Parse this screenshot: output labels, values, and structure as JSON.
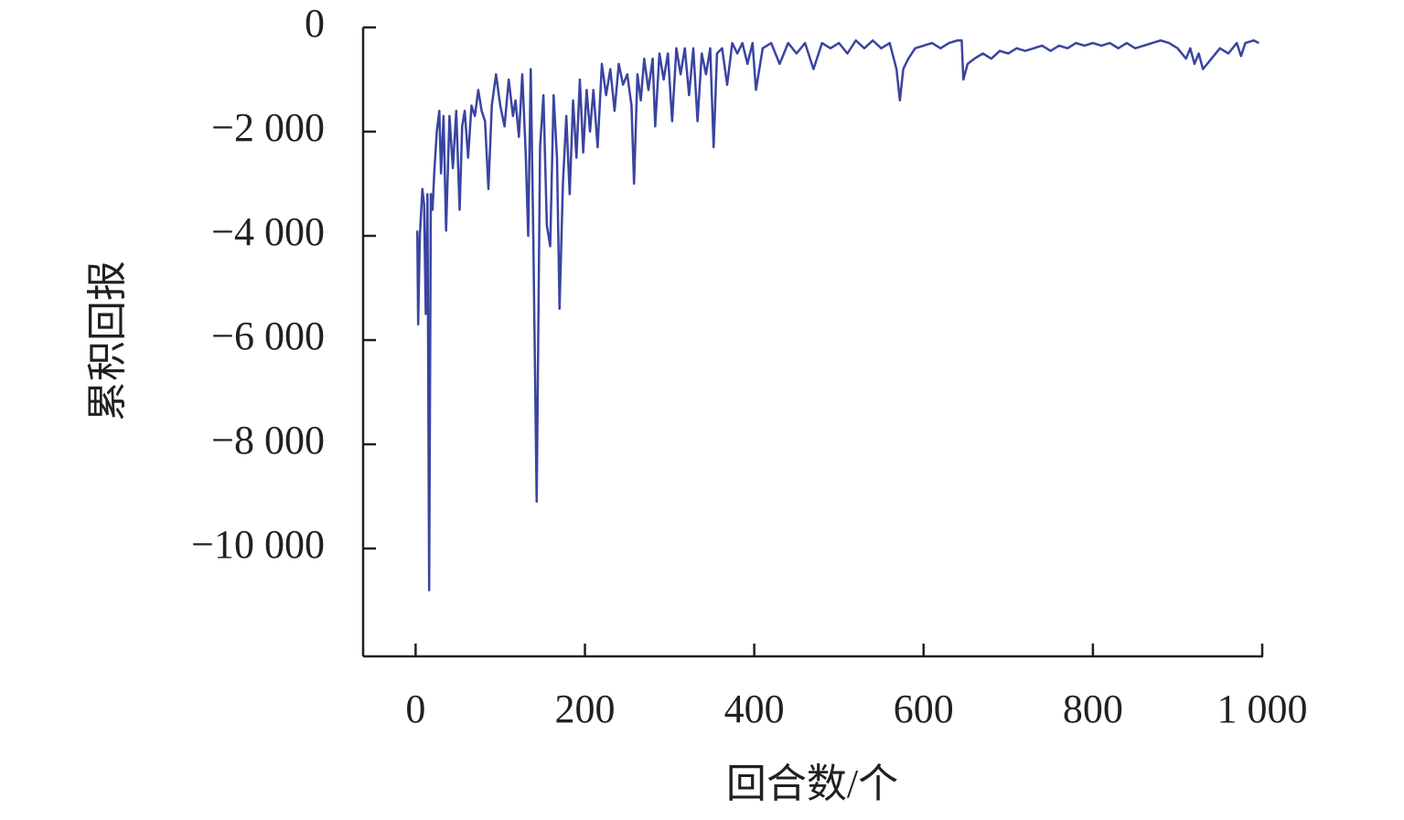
{
  "chart_data": {
    "type": "line",
    "x_label": "回合数/个",
    "y_label": "累积回报",
    "color": "#3a44a0",
    "xlim": [
      -62,
      1000
    ],
    "ylim": [
      -12070,
      0
    ],
    "xticks": [
      0,
      200,
      400,
      600,
      800,
      {
        "value": 1000,
        "label": "1 000"
      }
    ],
    "yticks": [
      0,
      {
        "value": -2000,
        "label": "−2 000"
      },
      {
        "value": -4000,
        "label": "−4 000"
      },
      {
        "value": -6000,
        "label": "−6 000"
      },
      {
        "value": -8000,
        "label": "−8 000"
      },
      {
        "value": -10000,
        "label": "−10 000"
      }
    ],
    "x": [
      2,
      3,
      5,
      8,
      10,
      12,
      14,
      16,
      18,
      20,
      22,
      25,
      28,
      30,
      33,
      36,
      40,
      44,
      48,
      52,
      55,
      58,
      62,
      66,
      70,
      74,
      78,
      82,
      86,
      90,
      95,
      100,
      105,
      110,
      115,
      118,
      122,
      126,
      130,
      133,
      136,
      139,
      143,
      147,
      151,
      155,
      159,
      163,
      167,
      170,
      174,
      178,
      182,
      186,
      190,
      194,
      198,
      202,
      206,
      210,
      215,
      220,
      225,
      230,
      235,
      240,
      245,
      250,
      255,
      258,
      262,
      266,
      270,
      275,
      280,
      283,
      288,
      293,
      298,
      303,
      308,
      313,
      318,
      323,
      328,
      333,
      338,
      343,
      348,
      352,
      356,
      362,
      368,
      374,
      380,
      386,
      392,
      398,
      402,
      410,
      420,
      430,
      440,
      450,
      460,
      470,
      480,
      490,
      500,
      510,
      520,
      530,
      540,
      550,
      560,
      568,
      572,
      576,
      582,
      590,
      600,
      610,
      620,
      630,
      640,
      645,
      647,
      652,
      660,
      670,
      680,
      690,
      700,
      710,
      720,
      730,
      740,
      750,
      760,
      770,
      780,
      790,
      800,
      810,
      820,
      830,
      840,
      850,
      860,
      870,
      880,
      890,
      900,
      910,
      915,
      920,
      925,
      930,
      940,
      950,
      960,
      970,
      975,
      980,
      990,
      996
    ],
    "values": [
      -3900,
      -5700,
      -4000,
      -3100,
      -3400,
      -5500,
      -3200,
      -10800,
      -3200,
      -3500,
      -2800,
      -2000,
      -1600,
      -2800,
      -1700,
      -3900,
      -1700,
      -2700,
      -1600,
      -3500,
      -1900,
      -1600,
      -2500,
      -1500,
      -1700,
      -1200,
      -1600,
      -1800,
      -3100,
      -1500,
      -900,
      -1500,
      -1900,
      -1000,
      -1700,
      -1400,
      -2100,
      -900,
      -2400,
      -4000,
      -800,
      -4000,
      -9100,
      -2300,
      -1300,
      -3800,
      -4200,
      -1300,
      -2500,
      -5400,
      -3000,
      -1700,
      -3200,
      -1400,
      -2500,
      -1000,
      -2400,
      -1200,
      -2000,
      -1200,
      -2300,
      -700,
      -1300,
      -800,
      -1600,
      -700,
      -1100,
      -900,
      -1500,
      -3000,
      -900,
      -1400,
      -600,
      -1200,
      -600,
      -1900,
      -500,
      -1000,
      -500,
      -1800,
      -400,
      -900,
      -400,
      -1300,
      -400,
      -1800,
      -500,
      -900,
      -400,
      -2300,
      -500,
      -400,
      -1100,
      -300,
      -500,
      -300,
      -700,
      -300,
      -1200,
      -400,
      -300,
      -700,
      -300,
      -500,
      -300,
      -800,
      -300,
      -400,
      -300,
      -500,
      -250,
      -400,
      -250,
      -400,
      -300,
      -800,
      -1400,
      -800,
      -600,
      -400,
      -350,
      -300,
      -400,
      -300,
      -250,
      -250,
      -1000,
      -700,
      -600,
      -500,
      -600,
      -450,
      -500,
      -400,
      -450,
      -400,
      -350,
      -450,
      -350,
      -400,
      -300,
      -350,
      -300,
      -350,
      -300,
      -400,
      -300,
      -400,
      -350,
      -300,
      -250,
      -300,
      -400,
      -600,
      -400,
      -700,
      -500,
      -800,
      -600,
      -400,
      -500,
      -300,
      -550,
      -300,
      -250,
      -300
    ]
  }
}
